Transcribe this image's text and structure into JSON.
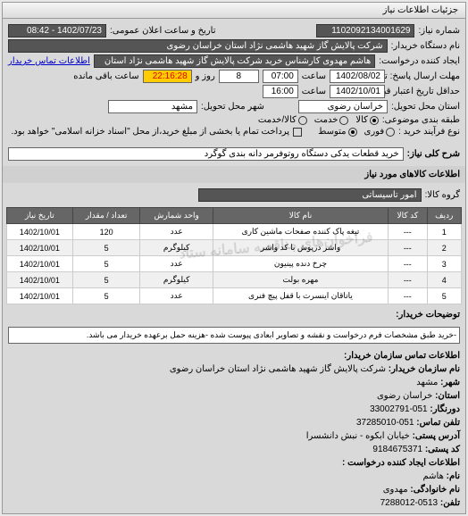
{
  "tab_title": "جزئیات اطلاعات نیاز",
  "header": {
    "req_number_label": "شماره نیاز:",
    "req_number": "1102092134001629",
    "announce_label": "تاریخ و ساعت اعلان عمومی:",
    "announce_value": "1402/07/23 - 08:42"
  },
  "buyer": {
    "name_label": "نام دستگاه خریدار:",
    "name": "شرکت پالایش گاز شهید هاشمی نژاد    استان خراسان رضوی",
    "creator_label": "ایجاد کننده درخواست:",
    "creator": "هاشم مهدوی کارشناس خرید شرکت پالایش گاز شهید هاشمی نژاد    استان",
    "contact_link": "اطلاعات تماس خریدار"
  },
  "deadlines": {
    "response_label": "مهلت ارسال پاسخ: تا تاریخ:",
    "response_date": "1402/08/02",
    "time_label": "ساعت",
    "response_time": "07:00",
    "days_field": "8",
    "days_label": "روز و",
    "remain_time": "22:16:28",
    "remain_label": "ساعت باقی مانده",
    "validity_label": "حداقل تاریخ اعتبار قیمت: تا تاریخ:",
    "validity_date": "1402/10/01",
    "validity_time": "16:00"
  },
  "location": {
    "province_label": "استان محل تحویل:",
    "province": "خراسان رضوی",
    "city_label": "شهر محل تحویل:",
    "city": "مشهد"
  },
  "classification": {
    "type_label": "طبقه بندی موضوعی:",
    "radios": [
      "کالا",
      "خدمت",
      "کالا/خدمت"
    ],
    "selected": 0
  },
  "payment": {
    "process_label": "نوع فرآیند خرید :",
    "radios": [
      "فوری",
      "متوسط"
    ],
    "selected": 1,
    "checkbox_label": "پرداخت تمام یا بخشی از مبلغ خرید،از محل \"اسناد خزانه اسلامی\" خواهد بود."
  },
  "need": {
    "title_label": "شرح کلی نیاز:",
    "title": "خرید قطعات یدکی  دستگاه روتوفرمر دانه بندی گوگرد"
  },
  "goods": {
    "section_title": "اطلاعات کالاهای مورد نیاز",
    "group_label": "گروه کالا:",
    "group": "امور تاسیساتی"
  },
  "table": {
    "headers": [
      "ردیف",
      "کد کالا",
      "نام کالا",
      "واحد شمارش",
      "تعداد / مقدار",
      "تاریخ نیاز"
    ],
    "rows": [
      [
        "1",
        "---",
        "تیغه پاک کننده صفحات ماشین کاری",
        "عدد",
        "120",
        "1402/10/01"
      ],
      [
        "2",
        "---",
        "واشر درپوش با کد واشر",
        "کیلوگرم",
        "5",
        "1402/10/01"
      ],
      [
        "3",
        "---",
        "چرخ دنده پینیون",
        "عدد",
        "5",
        "1402/10/01"
      ],
      [
        "4",
        "---",
        "مهره بولت",
        "کیلوگرم",
        "5",
        "1402/10/01"
      ],
      [
        "5",
        "---",
        "یاتاقان اینسرت با قفل پیچ فنری",
        "عدد",
        "5",
        "1402/10/01"
      ]
    ],
    "watermark": "فراخوان‌های مناقصه سامانه ستاد"
  },
  "description": {
    "label": "توضیحات خریدار:",
    "text": "-خرید طبق مشخصات فرم درخواست و نقشه و تصاویر ابعادی پیوست شده -هزینه حمل برعهده خریدار می باشد."
  },
  "contact": {
    "section_title": "اطلاعات تماس سازمان خریدار:",
    "org_label": "نام سازمان  خریدار:",
    "org": "شرکت پالایش گاز شهید هاشمی نژاد استان خراسان رضوی",
    "city_label": "شهر:",
    "city": "مشهد",
    "province_label": "استان:",
    "province": "خراسان رضوی",
    "fax_label": "دورنگار:",
    "fax": "051-33002791",
    "phone_label": "تلفن تماس:",
    "phone": "051-37285010",
    "address_label": "آدرس پستی:",
    "address": "خیابان ابکوه - نبش دانشسرا",
    "postal_label": "کد پستی:",
    "postal": "9184675371",
    "creator_section": "اطلاعات ایجاد کننده درخواست :",
    "cname_label": "نام:",
    "cname": "هاشم",
    "cfamily_label": "نام خانوادگی:",
    "cfamily": "مهدوی",
    "cphone_label": "تلفن:",
    "cphone": "0513-7288012"
  },
  "colors": {
    "bg": "#d9d9d9",
    "field_bg": "#ffffff",
    "dark_field": "#555555",
    "yellow_field": "#ffcc00",
    "th_bg": "#666666"
  }
}
